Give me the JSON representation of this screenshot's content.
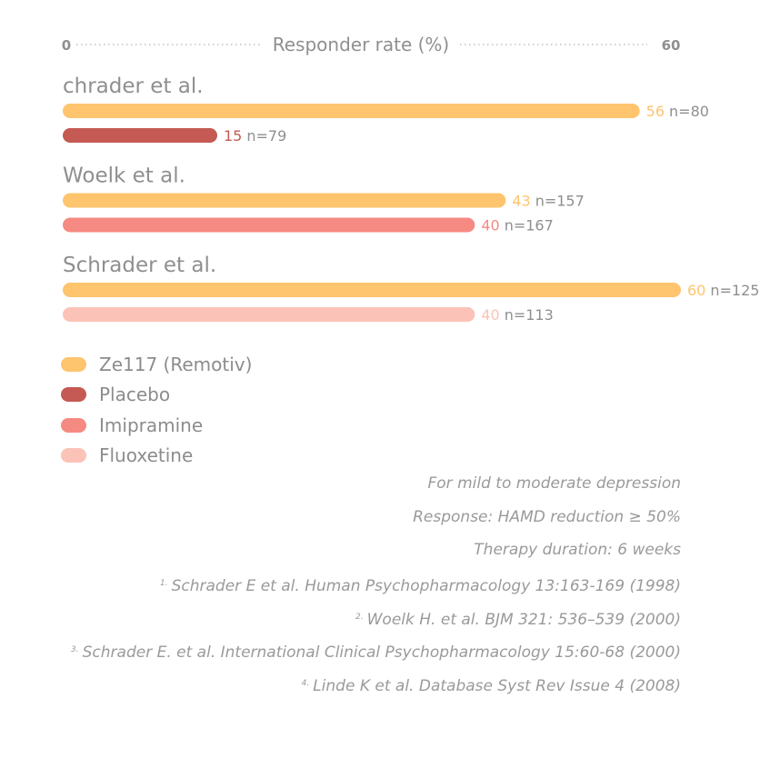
{
  "chart_data": {
    "type": "bar",
    "orientation": "horizontal",
    "axis": {
      "min_label": "0",
      "max_label": "60",
      "title": "Responder rate (%)",
      "range": [
        0,
        60
      ]
    },
    "groups": [
      {
        "label": "chrader et al.",
        "bars": [
          {
            "series": "Ze117 (Remotiv)",
            "value": 56,
            "value_label": "56",
            "n_label": "n=80"
          },
          {
            "series": "Placebo",
            "value": 15,
            "value_label": "15",
            "n_label": "n=79"
          }
        ]
      },
      {
        "label": "Woelk et al.",
        "bars": [
          {
            "series": "Ze117 (Remotiv)",
            "value": 43,
            "value_label": "43",
            "n_label": "n=157"
          },
          {
            "series": "Imipramine",
            "value": 40,
            "value_label": "40",
            "n_label": "n=167"
          }
        ]
      },
      {
        "label": "Schrader et al.",
        "bars": [
          {
            "series": "Ze117 (Remotiv)",
            "value": 60,
            "value_label": "60",
            "n_label": "n=125"
          },
          {
            "series": "Fluoxetine",
            "value": 40,
            "value_label": "40",
            "n_label": "n=113"
          }
        ]
      }
    ],
    "series": [
      {
        "name": "Ze117 (Remotiv)",
        "color": "#fec46e"
      },
      {
        "name": "Placebo",
        "color": "#c45a53"
      },
      {
        "name": "Imipramine",
        "color": "#f58a83"
      },
      {
        "name": "Fluoxetine",
        "color": "#fbc3b7"
      }
    ],
    "legend_position": "bottom-left",
    "grid": false
  },
  "notes": [
    {
      "sup": "",
      "text": "For mild to moderate depression"
    },
    {
      "sup": "",
      "text": "Response: HAMD reduction ≥ 50%"
    },
    {
      "sup": "",
      "text": "Therapy duration: 6 weeks"
    },
    {
      "sup": "1.",
      "text": "Schrader E et al. Human Psychopharmacology 13:163-169 (1998)"
    },
    {
      "sup": "2.",
      "text": "Woelk H. et al. BJM 321: 536–539 (2000)"
    },
    {
      "sup": "3.",
      "text": "Schrader E. et al. International Clinical Psychopharmacology 15:60-68 (2000)"
    },
    {
      "sup": "4.",
      "text": "Linde K et al. Database Syst Rev Issue 4 (2008)"
    }
  ]
}
